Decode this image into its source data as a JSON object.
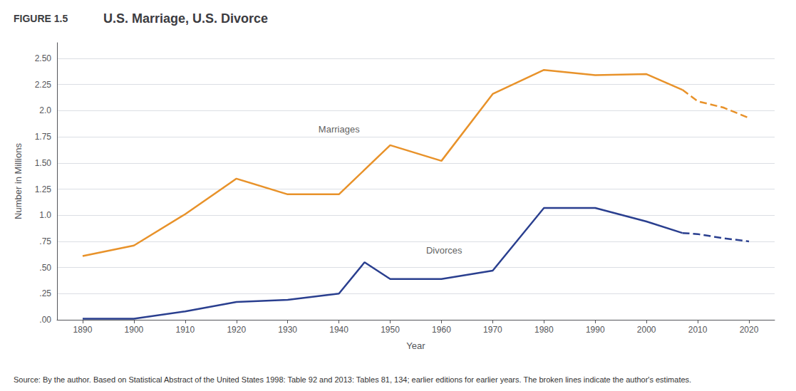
{
  "chart_data": {
    "type": "line",
    "figure_label": "FIGURE 1.5",
    "title": "U.S. Marriage, U.S. Divorce",
    "xlabel": "Year",
    "ylabel": "Number in Millions",
    "series": [
      {
        "x": [
          1890,
          1900,
          1910,
          1920,
          1930,
          1940,
          1950,
          1960,
          1970,
          1980,
          1990,
          2000,
          2007
        ],
        "values": [
          0.61,
          0.71,
          1.01,
          1.35,
          1.2,
          1.2,
          1.67,
          1.52,
          2.16,
          2.39,
          2.34,
          2.35,
          2.2
        ],
        "color": "#E8922A",
        "line_style": "solid"
      },
      {
        "x": [
          2007,
          2010,
          2015,
          2020
        ],
        "values": [
          2.2,
          2.09,
          2.03,
          1.93
        ],
        "color": "#E8922A",
        "line_style": "dashed"
      },
      {
        "x": [
          1890,
          1900,
          1910,
          1920,
          1930,
          1940,
          1945,
          1950,
          1960,
          1970,
          1980,
          1985,
          1990,
          2000,
          2007
        ],
        "values": [
          0.01,
          0.01,
          0.08,
          0.17,
          0.19,
          0.25,
          0.55,
          0.39,
          0.39,
          0.47,
          1.07,
          1.07,
          1.07,
          0.94,
          0.83
        ],
        "color": "#2A3F8F",
        "line_style": "solid"
      },
      {
        "x": [
          2007,
          2010,
          2015,
          2020
        ],
        "values": [
          0.83,
          0.82,
          0.78,
          0.75
        ],
        "color": "#2A3F8F",
        "line_style": "dashed"
      }
    ],
    "annotations": [
      {
        "text": "Marriages",
        "x": 1936,
        "y": 1.76
      },
      {
        "text": "Divorces",
        "x": 1957,
        "y": 0.6
      }
    ],
    "xlim": [
      1885,
      2025
    ],
    "xticks": [
      1890,
      1900,
      1910,
      1920,
      1930,
      1940,
      1950,
      1960,
      1970,
      1980,
      1990,
      2000,
      2010,
      2020
    ],
    "ylim": [
      0.0,
      2.65
    ],
    "yticks": [
      {
        "value": 0.0,
        "label": ".00"
      },
      {
        "value": 0.25,
        "label": ".25"
      },
      {
        "value": 0.5,
        "label": ".50"
      },
      {
        "value": 0.75,
        "label": ".75"
      },
      {
        "value": 1.0,
        "label": "1.0"
      },
      1.25,
      {
        "value": 1.5,
        "label": "1.50"
      },
      1.75,
      {
        "value": 2.0,
        "label": "2.0"
      },
      2.25,
      {
        "value": 2.5,
        "label": "2.50"
      }
    ],
    "grid": true,
    "note": "Source: By the author. Based on Statistical Abstract of the United States 1998: Table 92 and 2013: Tables 81, 134; earlier editions for earlier years. The broken lines indicate the author's estimates."
  }
}
